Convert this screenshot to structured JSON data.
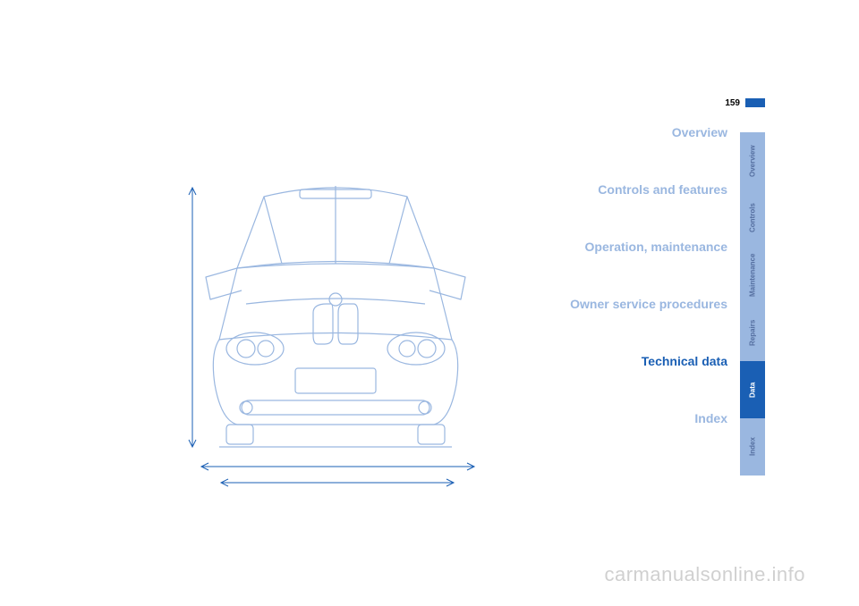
{
  "page_number": "159",
  "accent_color": "#1a5fb4",
  "muted_color": "#9ab7e0",
  "tab_bg": "#9ab7e0",
  "tab_active_bg": "#1a5fb4",
  "tab_text_color": "#556fa0",
  "tab_active_text_color": "#ffffff",
  "sections": [
    {
      "label": "Overview",
      "tab": "Overview",
      "active": false
    },
    {
      "label": "Controls and features",
      "tab": "Controls",
      "active": false
    },
    {
      "label": "Operation, maintenance",
      "tab": "Maintenance",
      "active": false
    },
    {
      "label": "Owner service procedures",
      "tab": "Repairs",
      "active": false
    },
    {
      "label": "Technical data",
      "tab": "Data",
      "active": true
    },
    {
      "label": "Index",
      "tab": "Index",
      "active": false
    }
  ],
  "watermark": "carmanualsonline.info",
  "illustration": {
    "stroke": "#9ab7e0",
    "measure_stroke": "#1a5fb4"
  }
}
